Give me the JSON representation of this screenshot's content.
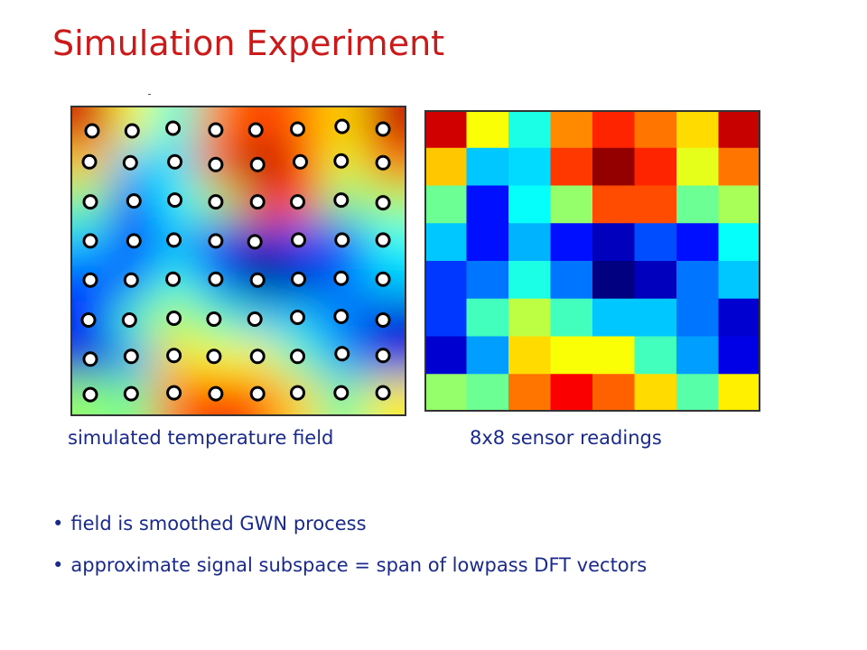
{
  "slide": {
    "title": "Simulation Experiment"
  },
  "captions": {
    "field": "simulated temperature field",
    "grid": "8x8 sensor readings"
  },
  "bullets": [
    "field is smoothed GWN process",
    "approximate signal subspace = span of lowpass DFT vectors"
  ],
  "colormap": "jet",
  "sensor_grid": {
    "rows": 8,
    "cols": 8,
    "values": [
      [
        0.92,
        0.62,
        0.4,
        0.74,
        0.84,
        0.76,
        0.66,
        0.93
      ],
      [
        0.68,
        0.32,
        0.34,
        0.82,
        0.98,
        0.84,
        0.6,
        0.76
      ],
      [
        0.48,
        0.14,
        0.38,
        0.52,
        0.8,
        0.8,
        0.48,
        0.54
      ],
      [
        0.32,
        0.14,
        0.3,
        0.14,
        0.06,
        0.2,
        0.14,
        0.38
      ],
      [
        0.18,
        0.24,
        0.4,
        0.24,
        0.0,
        0.06,
        0.24,
        0.32
      ],
      [
        0.18,
        0.44,
        0.56,
        0.44,
        0.32,
        0.32,
        0.24,
        0.08
      ],
      [
        0.08,
        0.28,
        0.66,
        0.62,
        0.62,
        0.44,
        0.28,
        0.1
      ],
      [
        0.52,
        0.48,
        0.76,
        0.88,
        0.78,
        0.66,
        0.46,
        0.64
      ]
    ]
  }
}
